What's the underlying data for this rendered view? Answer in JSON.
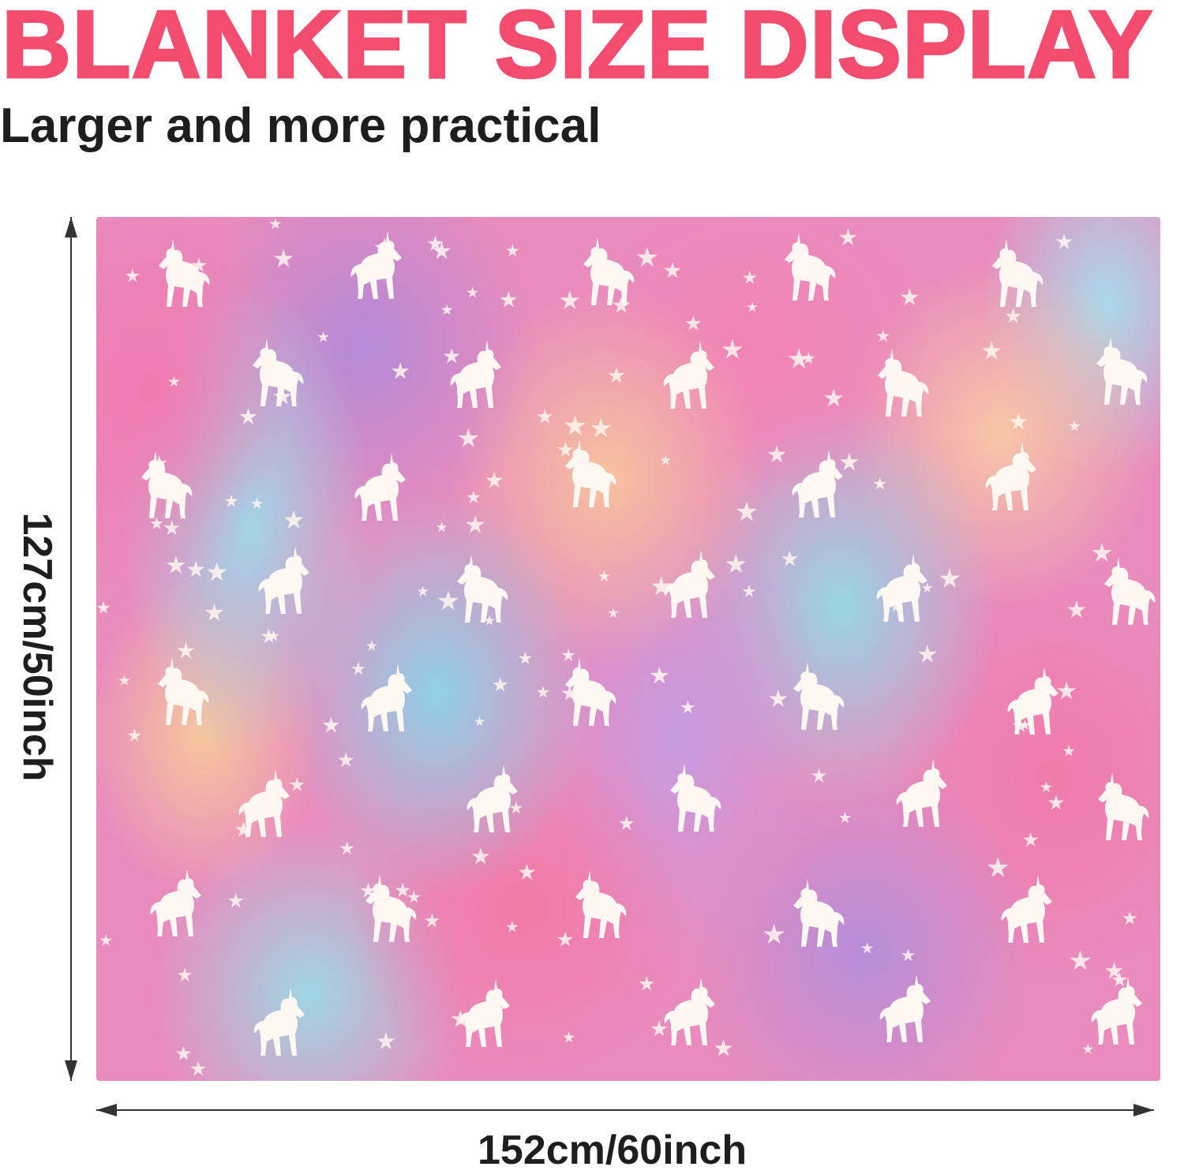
{
  "header": {
    "title": "BLANKET SIZE DISPLAY",
    "subtitle": "Larger and more practical"
  },
  "dimensions": {
    "height_label": "127cm/50inch",
    "width_label": "152cm/60inch"
  },
  "colors": {
    "title": "#f34c6e",
    "text": "#1e1e1e",
    "arrow": "#333333"
  },
  "image": {
    "subject": "unicorn-and-stars-pattern-blanket"
  }
}
